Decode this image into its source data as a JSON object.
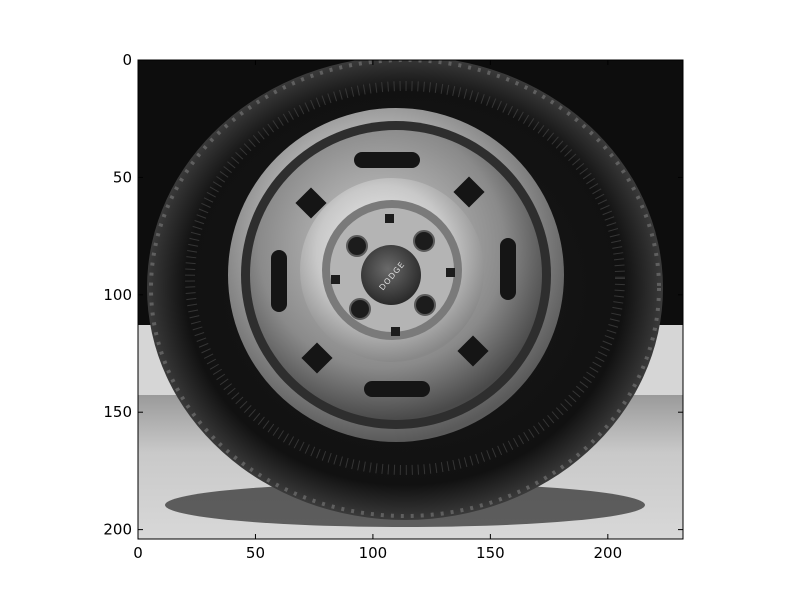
{
  "chart_data": {
    "type": "image",
    "subject": "grayscale photograph of a car wheel: tire, steel rim, hubcap",
    "colormap": "gray",
    "image_size": [
      232,
      204
    ],
    "xlim": [
      0,
      232
    ],
    "ylim": [
      204,
      0
    ],
    "x_ticks": [
      0,
      50,
      100,
      150,
      200
    ],
    "y_ticks": [
      0,
      50,
      100,
      150,
      200
    ],
    "x_tick_labels": [
      "0",
      "50",
      "100",
      "150",
      "200"
    ],
    "y_tick_labels": [
      "0",
      "50",
      "100",
      "150",
      "200"
    ],
    "hubcap_text": "DODGE"
  }
}
